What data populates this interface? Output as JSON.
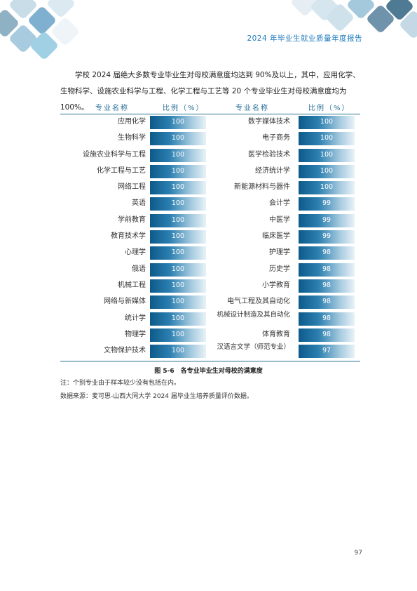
{
  "header": {
    "title": "2024 年毕业生就业质量年度报告"
  },
  "intro": "学校 2024 届绝大多数专业毕业生对母校满意度均达到 90%及以上，其中，应用化学、生物科学、设施农业科学与工程、化学工程与工艺等 20 个专业毕业生对母校满意度均为 100%。",
  "table": {
    "headers": {
      "name_left": "专业名称",
      "ratio_left": "比例（%）",
      "name_right": "专业名称",
      "ratio_right": "比例（%）"
    },
    "colors": {
      "bar_dark": "#0d5a8a",
      "bar_light": "#e8f2f8",
      "rule": "#2a6f97"
    },
    "left": [
      {
        "name": "应用化学",
        "value": "100"
      },
      {
        "name": "生物科学",
        "value": "100"
      },
      {
        "name": "设施农业科学与工程",
        "value": "100"
      },
      {
        "name": "化学工程与工艺",
        "value": "100"
      },
      {
        "name": "网络工程",
        "value": "100"
      },
      {
        "name": "英语",
        "value": "100"
      },
      {
        "name": "学前教育",
        "value": "100"
      },
      {
        "name": "教育技术学",
        "value": "100"
      },
      {
        "name": "心理学",
        "value": "100"
      },
      {
        "name": "俄语",
        "value": "100"
      },
      {
        "name": "机械工程",
        "value": "100"
      },
      {
        "name": "网络与新媒体",
        "value": "100"
      },
      {
        "name": "统计学",
        "value": "100"
      },
      {
        "name": "物理学",
        "value": "100"
      },
      {
        "name": "文物保护技术",
        "value": "100"
      }
    ],
    "right": [
      {
        "name": "数字媒体技术",
        "value": "100"
      },
      {
        "name": "电子商务",
        "value": "100"
      },
      {
        "name": "医学检验技术",
        "value": "100"
      },
      {
        "name": "经济统计学",
        "value": "100"
      },
      {
        "name": "新能源材料与器件",
        "value": "100"
      },
      {
        "name": "会计学",
        "value": "99"
      },
      {
        "name": "中医学",
        "value": "99"
      },
      {
        "name": "临床医学",
        "value": "99"
      },
      {
        "name": "护理学",
        "value": "98"
      },
      {
        "name": "历史学",
        "value": "98"
      },
      {
        "name": "小学教育",
        "value": "98"
      },
      {
        "name": "电气工程及其自动化",
        "value": "98"
      },
      {
        "name": "机械设计制造及其自动化",
        "value": "98"
      },
      {
        "name": "体育教育",
        "value": "98"
      },
      {
        "name": "汉语言文学（师范专业）",
        "value": "97"
      }
    ]
  },
  "caption": "图 5-6　各专业毕业生对母校的满意度",
  "note": "注：个别专业由于样本较少没有包括在内。",
  "source": "数据来源：麦可思-山西大同大学 2024 届毕业生培养质量评价数据。",
  "page_number": "97"
}
